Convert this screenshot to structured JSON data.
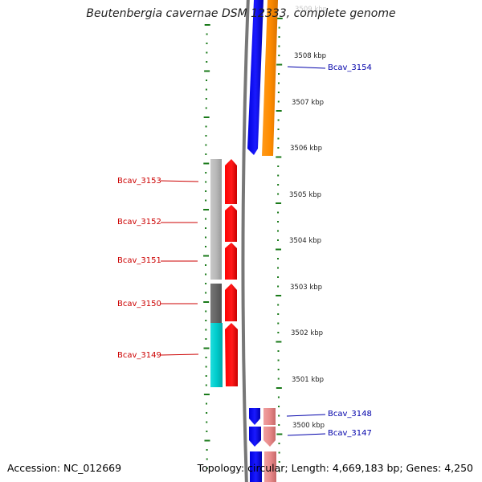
{
  "header": {
    "title": "Beutenbergia cavernae DSM 12333, complete genome"
  },
  "footer": {
    "accession": "Accession: NC_012669",
    "topology": "Topology: circular; Length: 4,669,183 bp; Genes: 4,250"
  },
  "scale": {
    "top_label": "3509 kbp",
    "tick_labels": [
      "3508 kbp",
      "3507 kbp",
      "3506 kbp",
      "3505 kbp",
      "3504 kbp",
      "3503 kbp",
      "3502 kbp",
      "3501 kbp",
      "3500 kbp"
    ]
  },
  "genes": {
    "left": [
      "Bcav_3153",
      "Bcav_3152",
      "Bcav_3151",
      "Bcav_3150",
      "Bcav_3149"
    ],
    "right": [
      "Bcav_3154",
      "Bcav_3148",
      "Bcav_3147"
    ]
  },
  "colors": {
    "forward_gene": "#ff0000",
    "reverse_gene": "#0000ee",
    "orange_track": "#ff8c00",
    "pink_track": "#e88a8a",
    "cyan_track": "#00cccc",
    "light_gray_track": "#b8b8b8",
    "dark_gray_track": "#666666",
    "backbone": "#777777",
    "tick_green": "#1a7a1a",
    "left_label": "#cc0000",
    "right_label": "#0000aa"
  }
}
